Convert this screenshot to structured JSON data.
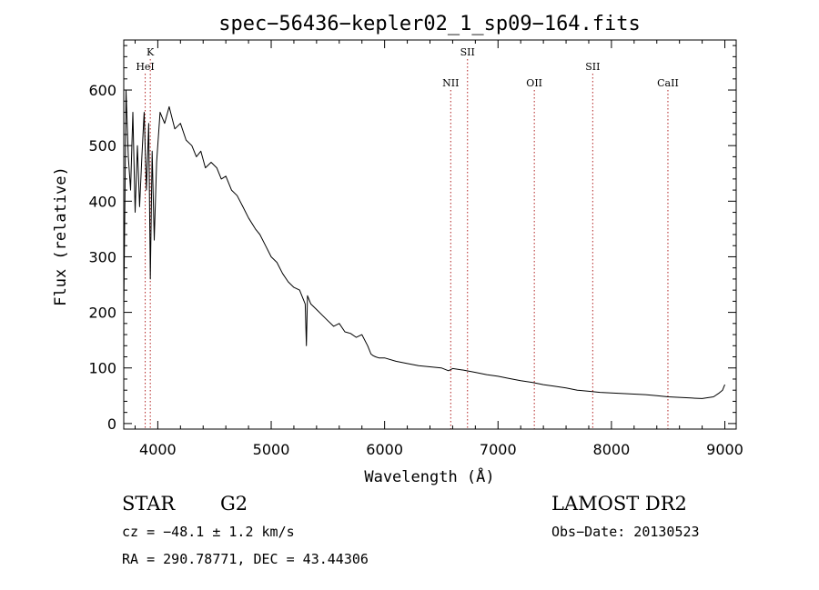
{
  "colors": {
    "background": "#ffffff",
    "spectrum": "#000000",
    "line_marker": "#b22222"
  },
  "chart_data": {
    "type": "line",
    "title": "spec−56436−kepler02_1_sp09−164.fits",
    "xlabel": "Wavelength (Å)",
    "ylabel": "Flux (relative)",
    "xlim": [
      3700,
      9100
    ],
    "ylim": [
      -10,
      690
    ],
    "x_ticks": [
      4000,
      5000,
      6000,
      7000,
      8000,
      9000
    ],
    "x_tick_labels": [
      "4000",
      "5000",
      "6000",
      "7000",
      "8000",
      "9000"
    ],
    "y_ticks": [
      0,
      100,
      200,
      300,
      400,
      500,
      600
    ],
    "y_tick_labels": [
      "0",
      "100",
      "200",
      "300",
      "400",
      "500",
      "600"
    ],
    "grid": false,
    "legend": "none",
    "series": [
      {
        "x": [
          3700,
          3720,
          3740,
          3760,
          3780,
          3800,
          3820,
          3840,
          3860,
          3880,
          3900,
          3920,
          3934,
          3950,
          3969,
          3990,
          4020,
          4060,
          4100,
          4150,
          4200,
          4250,
          4300,
          4340,
          4380,
          4420,
          4470,
          4520,
          4560,
          4600,
          4650,
          4700,
          4750,
          4800,
          4861,
          4900,
          4950,
          5000,
          5050,
          5100,
          5150,
          5200,
          5250,
          5300,
          5310,
          5320,
          5350,
          5400,
          5450,
          5500,
          5550,
          5600,
          5650,
          5700,
          5750,
          5800,
          5850,
          5880,
          5900,
          5920,
          5950,
          6000,
          6100,
          6200,
          6300,
          6400,
          6500,
          6563,
          6600,
          6700,
          6800,
          6900,
          7000,
          7100,
          7200,
          7300,
          7400,
          7500,
          7600,
          7700,
          7800,
          7900,
          8000,
          8100,
          8200,
          8300,
          8400,
          8500,
          8600,
          8700,
          8800,
          8900,
          8950,
          8980,
          9000
        ],
        "y": [
          200,
          600,
          480,
          420,
          560,
          380,
          500,
          390,
          480,
          560,
          420,
          540,
          260,
          490,
          330,
          470,
          560,
          540,
          570,
          530,
          540,
          510,
          500,
          480,
          490,
          460,
          470,
          460,
          440,
          445,
          420,
          410,
          390,
          370,
          350,
          340,
          320,
          300,
          290,
          270,
          255,
          245,
          240,
          215,
          140,
          230,
          215,
          205,
          195,
          185,
          175,
          180,
          165,
          162,
          155,
          160,
          140,
          125,
          122,
          120,
          118,
          118,
          112,
          108,
          104,
          102,
          100,
          95,
          99,
          96,
          92,
          88,
          85,
          81,
          77,
          74,
          70,
          67,
          64,
          60,
          58,
          56,
          55,
          54,
          53,
          52,
          50,
          48,
          47,
          46,
          45,
          48,
          55,
          60,
          70
        ]
      }
    ],
    "line_markers": [
      {
        "label": "K",
        "x": 3934,
        "row": 1
      },
      {
        "label": "HeI",
        "x": 3889,
        "row": 2
      },
      {
        "label": "NII",
        "x": 6583,
        "row": 3
      },
      {
        "label": "SII",
        "x": 6731,
        "row": 1
      },
      {
        "label": "OII",
        "x": 7320,
        "row": 3
      },
      {
        "label": "SII",
        "x": 7835,
        "row": 2
      },
      {
        "label": "CaII",
        "x": 8498,
        "row": 3
      }
    ]
  },
  "info": {
    "class": "STAR",
    "subclass": "G2",
    "survey": "LAMOST DR2",
    "cz": "cz = −48.1 ± 1.2 km/s",
    "obs_date": "Obs−Date: 20130523",
    "coords": "RA = 290.78771, DEC =  43.44306"
  }
}
